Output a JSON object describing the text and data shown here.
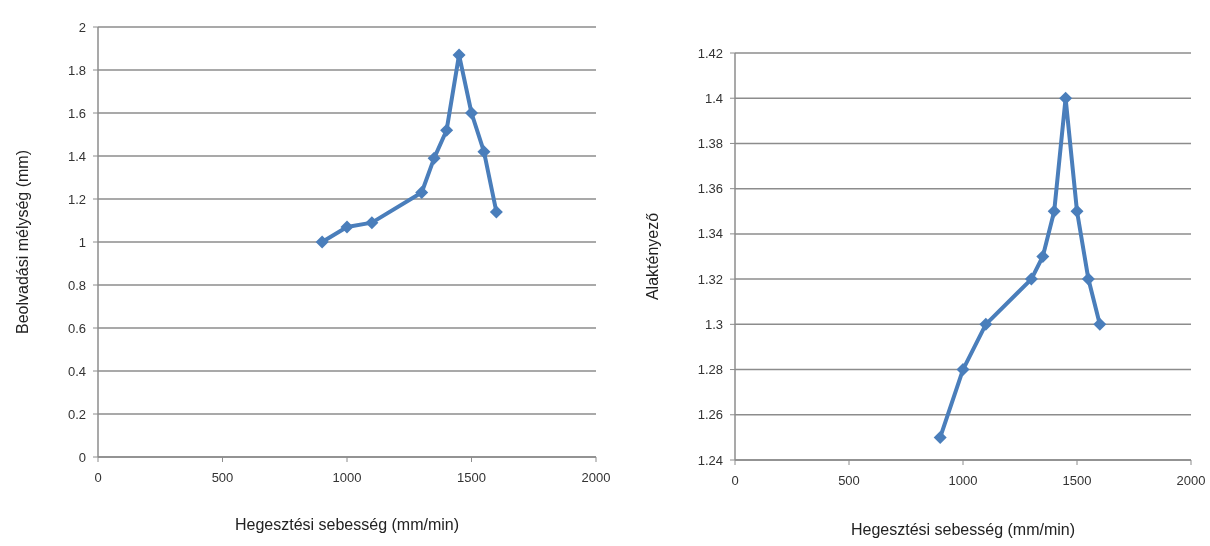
{
  "chart_data": [
    {
      "type": "line",
      "xlabel": "Hegesztési sebesség (mm/min)",
      "ylabel": "Beolvadási mélység (mm)",
      "x": [
        900,
        1000,
        1100,
        1300,
        1350,
        1400,
        1450,
        1500,
        1550,
        1600
      ],
      "series": [
        {
          "color": "#4a7ebb",
          "values": [
            1.0,
            1.07,
            1.09,
            1.23,
            1.39,
            1.52,
            1.87,
            1.6,
            1.42,
            1.14
          ]
        }
      ],
      "xlim": [
        0,
        2000
      ],
      "xticks": [
        0,
        500,
        1000,
        1500,
        2000
      ],
      "ylim": [
        0,
        2
      ],
      "yticks": [
        0,
        {
          "value": 0.2,
          "label": "0.2"
        },
        {
          "value": 0.4,
          "label": "0.4"
        },
        {
          "value": 0.6,
          "label": "0.6"
        },
        {
          "value": 0.8,
          "label": "0.8"
        },
        1,
        {
          "value": 1.2,
          "label": "1.2"
        },
        {
          "value": 1.4,
          "label": "1.4"
        },
        {
          "value": 1.6,
          "label": "1.6"
        },
        {
          "value": 1.8,
          "label": "1.8"
        },
        2
      ],
      "grid": "y",
      "marker": "diamond"
    },
    {
      "type": "line",
      "xlabel": "Hegesztési sebesség (mm/min)",
      "ylabel": "Alaktényező",
      "x": [
        900,
        1000,
        1100,
        1300,
        1350,
        1400,
        1450,
        1500,
        1550,
        1600
      ],
      "series": [
        {
          "color": "#4a7ebb",
          "values": [
            1.25,
            1.28,
            1.3,
            1.32,
            1.33,
            1.35,
            1.4,
            1.35,
            1.32,
            1.3
          ]
        }
      ],
      "xlim": [
        0,
        2000
      ],
      "xticks": [
        0,
        500,
        1000,
        1500,
        2000
      ],
      "ylim": [
        1.24,
        1.42
      ],
      "yticks": [
        1.24,
        1.26,
        1.28,
        {
          "value": 1.3,
          "label": "1.3"
        },
        1.32,
        1.34,
        1.36,
        1.38,
        {
          "value": 1.4,
          "label": "1.4"
        },
        1.42
      ],
      "grid": "y",
      "marker": "diamond"
    }
  ]
}
